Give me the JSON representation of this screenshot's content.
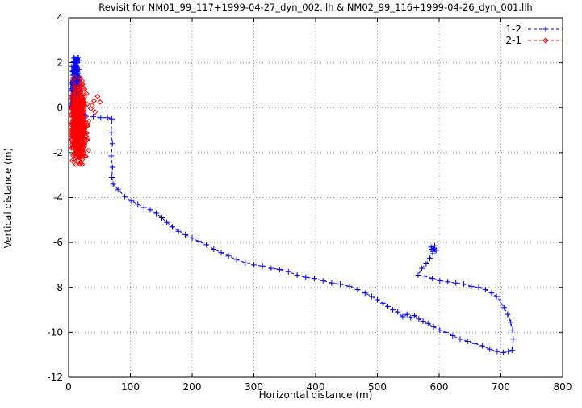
{
  "chart_data": {
    "type": "scatter",
    "title": "Revisit for NM01_99_117+1999-04-27_dyn_002.llh & NM02_99_116+1999-04-26_dyn_001.llh",
    "xlabel": "Horizontal distance (m)",
    "ylabel": "Vertical distance (m)",
    "xlim": [
      0,
      800
    ],
    "ylim": [
      -12,
      4
    ],
    "xticks": [
      0,
      100,
      200,
      300,
      400,
      500,
      600,
      700,
      800
    ],
    "yticks": [
      -12,
      -10,
      -8,
      -6,
      -4,
      -2,
      0,
      2,
      4
    ],
    "grid": true,
    "legend_position": "top-right",
    "axis_color": "#000000",
    "grid_color": "#999999",
    "series": [
      {
        "name": "1-2",
        "color": "#0000ff",
        "marker": "plus",
        "linestyle": "dashed",
        "cluster": {
          "count": 380,
          "cx": 11,
          "cy": 0.9,
          "sx": 3.5,
          "sy": 0.75,
          "x_min": 3,
          "x_max": 24,
          "y_min": -1.9,
          "y_max": 2.25,
          "seed": 42
        },
        "path": [
          [
            28,
            -0.35
          ],
          [
            40,
            -0.4
          ],
          [
            52,
            -0.45
          ],
          [
            63,
            -0.45
          ],
          [
            70,
            -0.5
          ],
          [
            69,
            -1.1
          ],
          [
            71,
            -1.6
          ],
          [
            69,
            -2.15
          ],
          [
            71,
            -2.65
          ],
          [
            70,
            -3.1
          ],
          [
            72,
            -3.4
          ],
          [
            80,
            -3.65
          ],
          [
            91,
            -3.95
          ],
          [
            102,
            -4.15
          ],
          [
            112,
            -4.3
          ],
          [
            122,
            -4.45
          ],
          [
            132,
            -4.55
          ],
          [
            142,
            -4.7
          ],
          [
            151,
            -4.9
          ],
          [
            159,
            -5.1
          ],
          [
            168,
            -5.3
          ],
          [
            178,
            -5.5
          ],
          [
            189,
            -5.65
          ],
          [
            200,
            -5.8
          ],
          [
            211,
            -5.95
          ],
          [
            223,
            -6.1
          ],
          [
            235,
            -6.3
          ],
          [
            247,
            -6.45
          ],
          [
            259,
            -6.6
          ],
          [
            272,
            -6.75
          ],
          [
            286,
            -6.9
          ],
          [
            300,
            -7.0
          ],
          [
            314,
            -7.05
          ],
          [
            328,
            -7.15
          ],
          [
            342,
            -7.2
          ],
          [
            356,
            -7.3
          ],
          [
            370,
            -7.45
          ],
          [
            384,
            -7.55
          ],
          [
            398,
            -7.6
          ],
          [
            412,
            -7.7
          ],
          [
            426,
            -7.8
          ],
          [
            440,
            -7.85
          ],
          [
            455,
            -7.95
          ],
          [
            468,
            -8.1
          ],
          [
            480,
            -8.25
          ],
          [
            491,
            -8.4
          ],
          [
            500,
            -8.55
          ],
          [
            509,
            -8.7
          ],
          [
            517,
            -8.85
          ],
          [
            525,
            -9.0
          ],
          [
            533,
            -9.1
          ],
          [
            541,
            -9.3
          ],
          [
            548,
            -9.2
          ],
          [
            554,
            -9.35
          ],
          [
            560,
            -9.25
          ],
          [
            567,
            -9.4
          ],
          [
            574,
            -9.5
          ],
          [
            582,
            -9.6
          ],
          [
            591,
            -9.75
          ],
          [
            601,
            -9.9
          ],
          [
            611,
            -10.0
          ],
          [
            622,
            -10.15
          ],
          [
            634,
            -10.3
          ],
          [
            646,
            -10.4
          ],
          [
            658,
            -10.5
          ],
          [
            670,
            -10.6
          ],
          [
            682,
            -10.75
          ],
          [
            694,
            -10.85
          ],
          [
            704,
            -10.9
          ],
          [
            712,
            -10.85
          ],
          [
            718,
            -10.8
          ],
          [
            720,
            -10.3
          ],
          [
            719,
            -9.9
          ],
          [
            716,
            -9.55
          ],
          [
            711,
            -9.2
          ],
          [
            705,
            -8.9
          ],
          [
            699,
            -8.6
          ],
          [
            693,
            -8.4
          ],
          [
            685,
            -8.25
          ],
          [
            675,
            -8.1
          ],
          [
            664,
            -8.0
          ],
          [
            652,
            -7.95
          ],
          [
            640,
            -7.85
          ],
          [
            627,
            -7.8
          ],
          [
            614,
            -7.75
          ],
          [
            601,
            -7.7
          ],
          [
            589,
            -7.6
          ],
          [
            577,
            -7.5
          ],
          [
            566,
            -7.45
          ],
          [
            572,
            -7.15
          ],
          [
            579,
            -6.95
          ],
          [
            585,
            -6.7
          ],
          [
            590,
            -6.5
          ],
          [
            588,
            -6.3
          ],
          [
            592,
            -6.25
          ],
          [
            595,
            -6.35
          ],
          [
            590,
            -6.4
          ],
          [
            587,
            -6.2
          ],
          [
            593,
            -6.15
          ],
          [
            590,
            -6.3
          ]
        ]
      },
      {
        "name": "2-1",
        "color": "#ff0000",
        "marker": "diamond",
        "linestyle": "dashed",
        "cluster": {
          "count": 520,
          "cx": 16,
          "cy": -0.75,
          "sx": 5.5,
          "sy": 0.85,
          "x_min": 3,
          "x_max": 38,
          "y_min": -2.55,
          "y_max": 1.5,
          "seed": 7
        },
        "outliers": [
          [
            36,
            -0.05
          ],
          [
            41,
            0.3
          ],
          [
            47,
            0.5
          ],
          [
            43,
            -0.2
          ],
          [
            51,
            0.25
          ],
          [
            38,
            0.1
          ]
        ]
      }
    ]
  }
}
